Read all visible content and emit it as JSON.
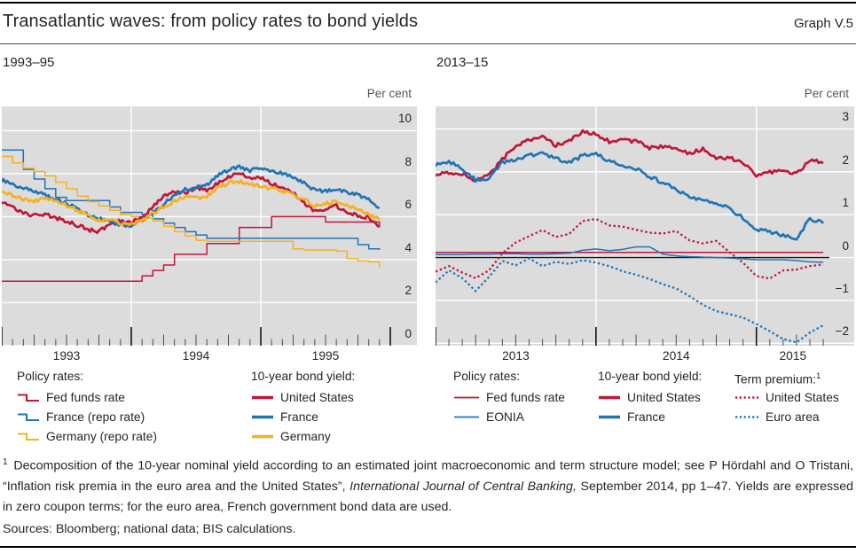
{
  "header": {
    "title": "Transatlantic waves: from policy rates to bond yields",
    "graph_label": "Graph V.5"
  },
  "colors": {
    "red": "#c11638",
    "blue": "#1f74b4",
    "yellow": "#f7b01e",
    "plot_bg": "#dcdcdd",
    "grid": "#ffffff",
    "zero_line": "#1a1a1a",
    "tick_minor": "#4d4d4d",
    "tick_year": "#111111",
    "text": "#262626",
    "muted": "#575757"
  },
  "panels": [
    {
      "title": "1993–95",
      "unit": "Per cent",
      "legend": [
        {
          "header": "Policy rates:",
          "items": [
            {
              "label": "Fed funds rate",
              "icon": "step",
              "color": "red"
            },
            {
              "label": "France (repo rate)",
              "icon": "step",
              "color": "blue"
            },
            {
              "label": "Germany (repo rate)",
              "icon": "step",
              "color": "yellow"
            }
          ]
        },
        {
          "header": "10-year bond yield:",
          "items": [
            {
              "label": "United States",
              "icon": "line-thick",
              "color": "red"
            },
            {
              "label": "France",
              "icon": "line-thick",
              "color": "blue"
            },
            {
              "label": "Germany",
              "icon": "line-thick",
              "color": "yellow"
            }
          ]
        }
      ]
    },
    {
      "title": "2013–15",
      "unit": "Per cent",
      "legend": [
        {
          "header": "Policy rates:",
          "items": [
            {
              "label": "Fed funds rate",
              "icon": "line-thin",
              "color": "red"
            },
            {
              "label": "EONIA",
              "icon": "line-thin",
              "color": "blue"
            }
          ]
        },
        {
          "header": "10-year bond yield:",
          "items": [
            {
              "label": "United States",
              "icon": "line-thick",
              "color": "red"
            },
            {
              "label": "France",
              "icon": "line-thick",
              "color": "blue"
            }
          ]
        },
        {
          "header": "Term premium:",
          "header_sup": "1",
          "items": [
            {
              "label": "United States",
              "icon": "dotted",
              "color": "red"
            },
            {
              "label": "Euro area",
              "icon": "dotted",
              "color": "blue"
            }
          ]
        }
      ]
    }
  ],
  "chart_data": [
    {
      "type": "line",
      "title": "1993–95",
      "ylabel": "Per cent",
      "x_range": [
        1993.0,
        1996.0
      ],
      "ylim": [
        0,
        11.13
      ],
      "yticks": [
        0,
        2,
        4,
        6,
        8,
        10
      ],
      "ytick_labels": [
        "0",
        "2",
        "4",
        "6",
        "8",
        "10"
      ],
      "x_years": [
        1993,
        1994,
        1995
      ],
      "x_year_labels": [
        "1993",
        "1994",
        "1995"
      ],
      "grid": true,
      "zero_line": false,
      "series": [
        {
          "name": "Fed funds rate",
          "group": "Policy rates:",
          "color": "red",
          "shape": "step",
          "width": "thin",
          "x_start": 1993.0,
          "x_step_months": 1,
          "values": [
            3,
            3,
            3,
            3,
            3,
            3,
            3,
            3,
            3,
            3,
            3,
            3,
            3,
            3.25,
            3.5,
            3.75,
            4.25,
            4.25,
            4.25,
            4.75,
            4.75,
            4.75,
            5.5,
            5.5,
            5.5,
            6,
            6,
            6,
            6,
            6,
            5.75,
            5.75,
            5.75,
            5.75,
            5.75,
            5.5
          ]
        },
        {
          "name": "France (repo rate)",
          "group": "Policy rates:",
          "color": "blue",
          "shape": "step",
          "width": "thin",
          "x_start": 1993.0,
          "x_step_months": 1,
          "values": [
            9.1,
            9.1,
            8.2,
            7.75,
            7.3,
            6.9,
            6.75,
            6.75,
            6.75,
            6.75,
            6.45,
            6.2,
            6.2,
            6.1,
            5.9,
            5.7,
            5.5,
            5.3,
            5.15,
            5,
            5,
            5,
            5,
            5,
            5,
            5,
            5,
            5,
            5,
            5,
            5,
            5,
            5,
            4.7,
            4.5,
            4.45
          ]
        },
        {
          "name": "Germany (repo rate)",
          "group": "Policy rates:",
          "color": "yellow",
          "shape": "step",
          "width": "thin",
          "x_start": 1993.0,
          "x_step_months": 1,
          "values": [
            8.8,
            8.5,
            8.25,
            8.1,
            7.9,
            7.6,
            7.3,
            6.95,
            6.7,
            6.5,
            6.3,
            6.1,
            6,
            5.95,
            5.8,
            5.55,
            5.3,
            5.1,
            4.9,
            4.85,
            4.85,
            4.85,
            4.85,
            4.85,
            4.85,
            4.85,
            4.85,
            4.5,
            4.45,
            4.45,
            4.45,
            4.4,
            4.05,
            3.95,
            3.9,
            3.65
          ]
        },
        {
          "name": "United States",
          "group": "10-year bond yield:",
          "color": "red",
          "shape": "wiggly",
          "width": "thick",
          "x_start": 1993.0,
          "x_step_months": 1,
          "values": [
            6.7,
            6.45,
            6.2,
            6.05,
            6.1,
            5.95,
            5.8,
            5.6,
            5.4,
            5.3,
            5.65,
            5.8,
            5.75,
            6,
            6.45,
            6.95,
            7.15,
            7.1,
            7.3,
            7.25,
            7.55,
            7.85,
            8,
            7.85,
            7.8,
            7.55,
            7.3,
            7.1,
            6.65,
            6.25,
            6.35,
            6.5,
            6.2,
            6.05,
            5.95,
            5.55
          ]
        },
        {
          "name": "France",
          "group": "10-year bond yield:",
          "color": "blue",
          "shape": "wiggly",
          "width": "thick",
          "x_start": 1993.0,
          "x_step_months": 1,
          "values": [
            7.7,
            7.5,
            7.3,
            7.2,
            7,
            6.8,
            6.6,
            6.35,
            6.1,
            5.9,
            5.75,
            5.65,
            5.6,
            5.8,
            6.2,
            6.6,
            7,
            7.25,
            7.35,
            7.5,
            7.9,
            8.15,
            8.3,
            8.15,
            8.25,
            8.1,
            8,
            7.8,
            7.55,
            7.25,
            7.2,
            7.3,
            7.1,
            7,
            6.8,
            6.4
          ]
        },
        {
          "name": "Germany",
          "group": "10-year bond yield:",
          "color": "yellow",
          "shape": "wiggly",
          "width": "thick",
          "x_start": 1993.0,
          "x_step_months": 1,
          "values": [
            7.2,
            7,
            6.8,
            6.7,
            6.85,
            6.7,
            6.55,
            6.3,
            6.05,
            5.85,
            5.9,
            5.7,
            5.65,
            5.8,
            6.15,
            6.45,
            6.7,
            6.95,
            6.85,
            6.95,
            7.35,
            7.55,
            7.65,
            7.5,
            7.45,
            7.3,
            7.2,
            7.05,
            6.8,
            6.5,
            6.6,
            6.7,
            6.5,
            6.35,
            6.1,
            5.85
          ]
        }
      ]
    },
    {
      "type": "line",
      "title": "2013–15",
      "ylabel": "Per cent",
      "x_range": [
        2013.0,
        2015.455
      ],
      "ylim": [
        -2.055,
        3.525
      ],
      "yticks": [
        -2,
        -1,
        0,
        1,
        2,
        3
      ],
      "ytick_labels": [
        "−2",
        "−1",
        "0",
        "1",
        "2",
        "3"
      ],
      "x_years": [
        2013,
        2014,
        2015
      ],
      "x_year_labels": [
        "2013",
        "2014",
        "2015"
      ],
      "grid": true,
      "zero_line": true,
      "series": [
        {
          "name": "United States",
          "group": "Term premium:",
          "color": "red",
          "shape": "line",
          "width": "dot",
          "dash": true,
          "x_start": 2013.0,
          "x_step_months": 1,
          "values": [
            -0.33,
            -0.2,
            -0.35,
            -0.48,
            -0.3,
            0.1,
            0.35,
            0.5,
            0.64,
            0.48,
            0.55,
            0.85,
            0.9,
            0.75,
            0.72,
            0.65,
            0.58,
            0.56,
            0.62,
            0.4,
            0.33,
            0.39,
            0.12,
            -0.12,
            -0.43,
            -0.49,
            -0.3,
            -0.28,
            -0.2,
            -0.16
          ]
        },
        {
          "name": "Euro area",
          "group": "Term premium:",
          "color": "blue",
          "shape": "line",
          "width": "dot",
          "dash": true,
          "x_start": 2013.0,
          "x_step_months": 1,
          "values": [
            -0.58,
            -0.3,
            -0.48,
            -0.78,
            -0.45,
            -0.08,
            -0.18,
            -0.02,
            -0.2,
            -0.1,
            -0.15,
            -0.06,
            -0.12,
            -0.2,
            -0.32,
            -0.4,
            -0.5,
            -0.62,
            -0.72,
            -0.9,
            -1.1,
            -1.25,
            -1.32,
            -1.4,
            -1.55,
            -1.72,
            -1.9,
            -1.98,
            -1.75,
            -1.58
          ]
        },
        {
          "name": "Fed funds rate",
          "group": "Policy rates:",
          "color": "red",
          "shape": "line",
          "width": "thin",
          "x_start": 2013.0,
          "x_step_months": 1,
          "values": [
            0.12,
            0.12,
            0.12,
            0.12,
            0.12,
            0.12,
            0.12,
            0.12,
            0.12,
            0.12,
            0.12,
            0.12,
            0.12,
            0.12,
            0.12,
            0.12,
            0.12,
            0.12,
            0.12,
            0.12,
            0.12,
            0.12,
            0.12,
            0.12,
            0.12,
            0.12,
            0.12,
            0.12,
            0.12,
            0.12
          ]
        },
        {
          "name": "EONIA",
          "group": "Policy rates:",
          "color": "blue",
          "shape": "line",
          "width": "thin",
          "x_start": 2013.0,
          "x_step_months": 1,
          "values": [
            0.07,
            0.07,
            0.07,
            0.08,
            0.08,
            0.09,
            0.09,
            0.08,
            0.08,
            0.09,
            0.1,
            0.17,
            0.2,
            0.16,
            0.19,
            0.25,
            0.25,
            0.08,
            0.04,
            0.02,
            0.01,
            0,
            -0.01,
            -0.03,
            -0.05,
            -0.05,
            -0.05,
            -0.07,
            -0.1,
            -0.11
          ]
        },
        {
          "name": "United States",
          "group": "10-year bond yield:",
          "color": "red",
          "shape": "wiggly",
          "width": "thick",
          "x_start": 2013.0,
          "x_step_months": 1,
          "values": [
            1.91,
            1.98,
            1.96,
            1.76,
            1.93,
            2.3,
            2.58,
            2.74,
            2.81,
            2.62,
            2.72,
            2.95,
            2.86,
            2.71,
            2.73,
            2.71,
            2.56,
            2.6,
            2.54,
            2.42,
            2.53,
            2.3,
            2.33,
            2.21,
            1.88,
            1.98,
            2.04,
            1.94,
            2.28,
            2.2
          ]
        },
        {
          "name": "France",
          "group": "10-year bond yield:",
          "color": "blue",
          "shape": "wiggly",
          "width": "thick",
          "x_start": 2013.0,
          "x_step_months": 1,
          "values": [
            2.17,
            2.24,
            2.07,
            1.81,
            1.86,
            2.21,
            2.27,
            2.38,
            2.43,
            2.33,
            2.21,
            2.38,
            2.41,
            2.25,
            2.16,
            2.06,
            1.9,
            1.74,
            1.58,
            1.41,
            1.35,
            1.26,
            1.14,
            0.92,
            0.67,
            0.6,
            0.51,
            0.44,
            0.9,
            0.8
          ]
        }
      ]
    }
  ],
  "footnote": {
    "marker": "1",
    "part1": " Decomposition of the 10-year nominal yield according to an estimated joint macroeconomic and term structure model; see P Hördahl and O Tristani, “Inflation risk premia in the euro area and the United States”, ",
    "italic": "International Journal of Central Banking,",
    "part2": " September 2014, pp 1–47. Yields are expressed in zero coupon terms; for the euro area, French government bond data are used.",
    "sources": "Sources: Bloomberg; national data; BIS calculations."
  }
}
